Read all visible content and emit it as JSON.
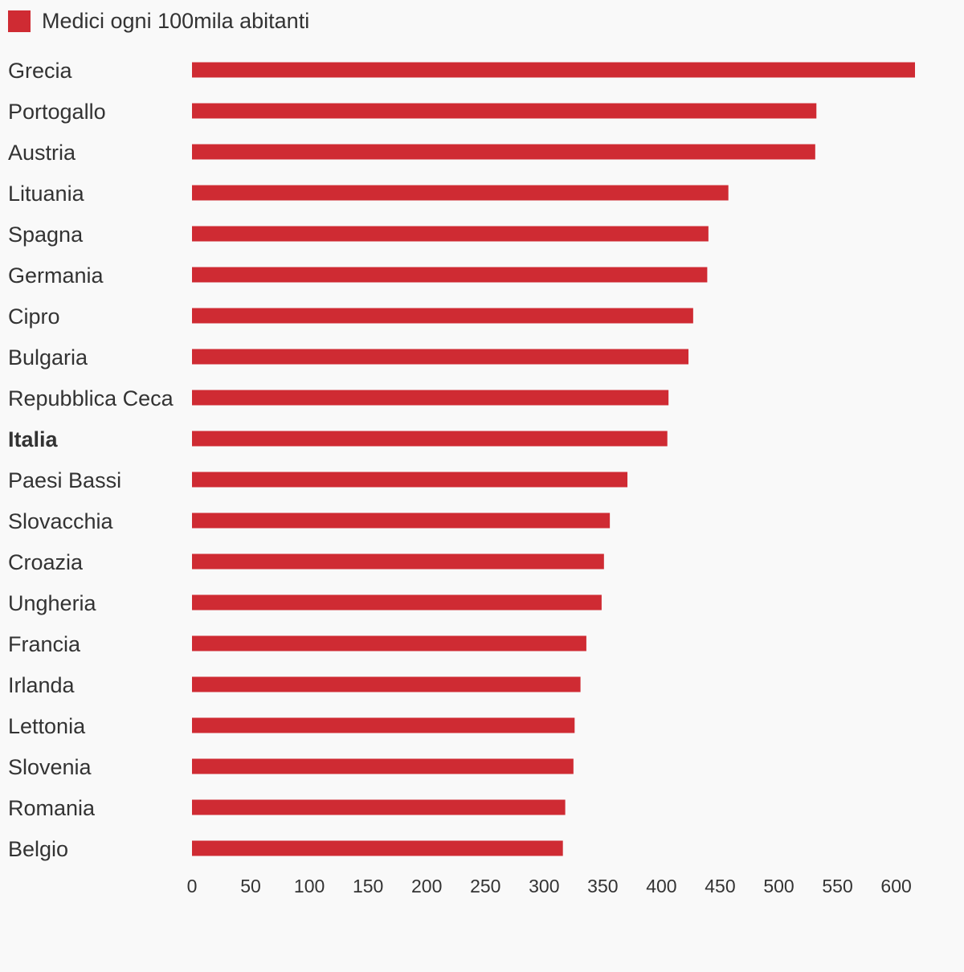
{
  "chart_data": {
    "type": "bar",
    "orientation": "horizontal",
    "series": [
      {
        "name": "Medici ogni 100mila abitanti",
        "color": "#cf2b33",
        "values": [
          616,
          532,
          531,
          457,
          440,
          439,
          427,
          423,
          406,
          405,
          371,
          356,
          351,
          349,
          336,
          331,
          326,
          325,
          318,
          316
        ]
      }
    ],
    "categories": [
      "Grecia",
      "Portogallo",
      "Austria",
      "Lituania",
      "Spagna",
      "Germania",
      "Cipro",
      "Bulgaria",
      "Repubblica Ceca",
      "Italia",
      "Paesi Bassi",
      "Slovacchia",
      "Croazia",
      "Ungheria",
      "Francia",
      "Irlanda",
      "Lettonia",
      "Slovenia",
      "Romania",
      "Belgio"
    ],
    "highlighted_category": "Italia",
    "xlim": [
      0,
      616
    ],
    "xticks": [
      0,
      50,
      100,
      150,
      200,
      250,
      300,
      350,
      400,
      450,
      500,
      550,
      600
    ],
    "grid": false,
    "legend_position": "top-left",
    "title": "",
    "xlabel": "",
    "ylabel": ""
  }
}
